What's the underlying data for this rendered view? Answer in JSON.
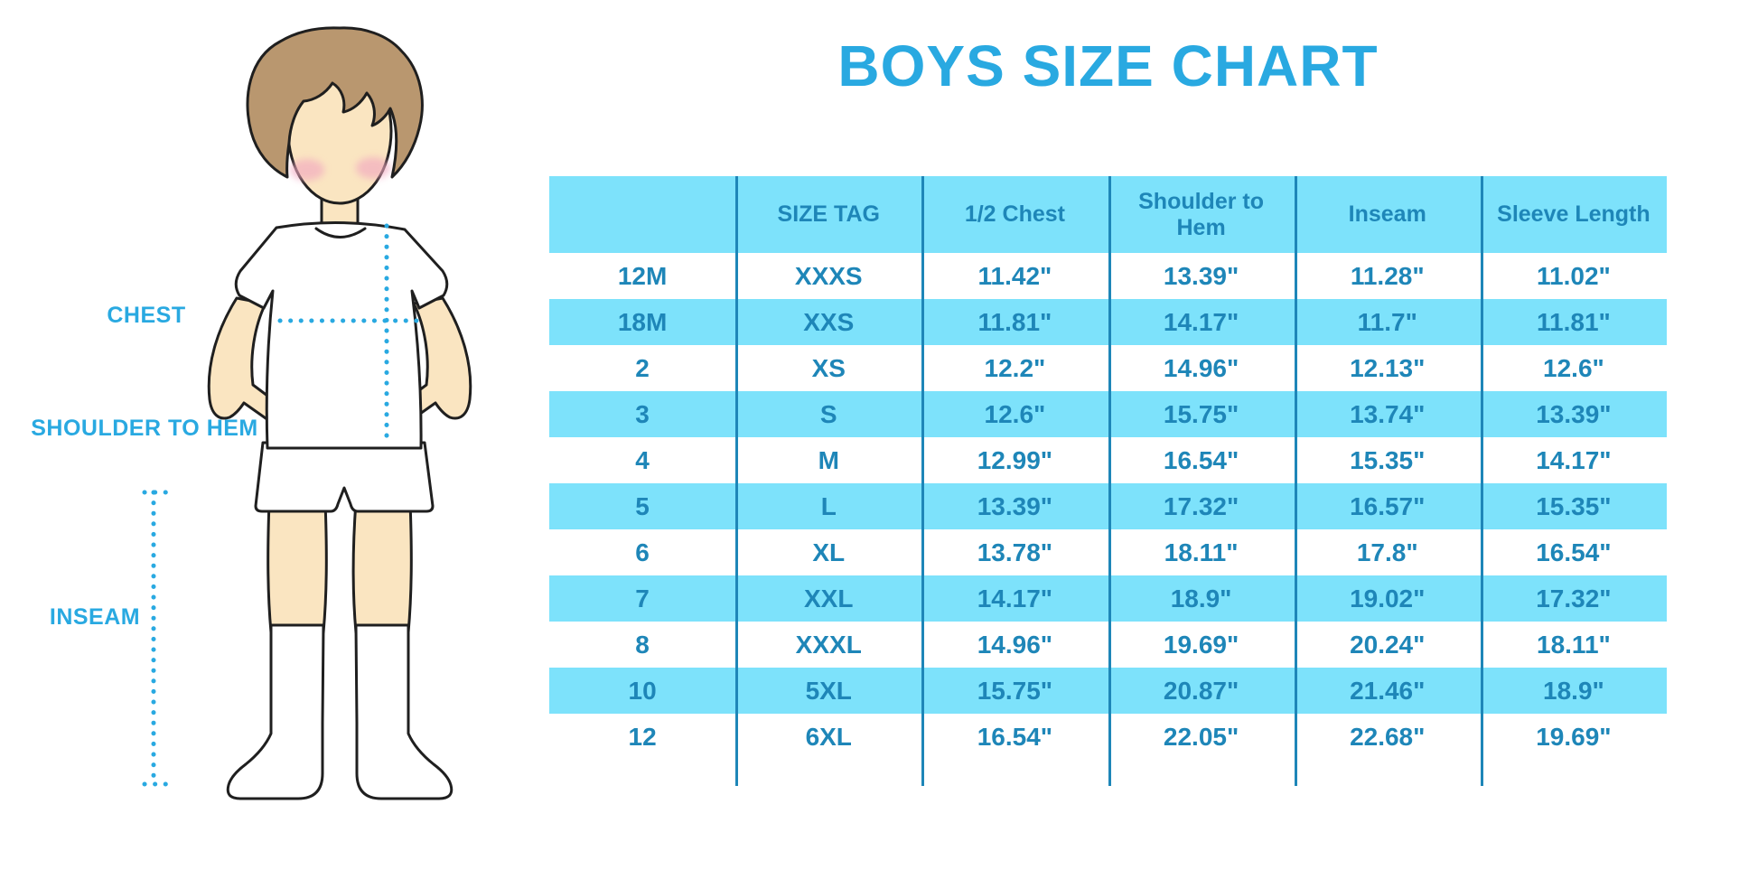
{
  "title": "BOYS SIZE CHART",
  "colors": {
    "accent_blue": "#29A9E1",
    "row_fill_blue": "#7DE2FB",
    "table_ink_blue": "#1E86B8",
    "outline": "#1f1f1f",
    "skin": "#FAE5C1",
    "hair": "#B9976F",
    "blush": "#F2A8C0",
    "clothing_white": "#FFFFFF"
  },
  "figure_labels": {
    "chest": "CHEST",
    "shoulder_to_hem": "SHOULDER TO HEM",
    "inseam": "INSEAM"
  },
  "chart_data": {
    "type": "table",
    "title": "BOYS SIZE CHART",
    "units": "inches",
    "columns": [
      "",
      "SIZE TAG",
      "1/2 Chest",
      "Shoulder to Hem",
      "Inseam",
      "Sleeve Length"
    ],
    "rows": [
      [
        "12M",
        "XXXS",
        "11.42\"",
        "13.39\"",
        "11.28\"",
        "11.02\""
      ],
      [
        "18M",
        "XXS",
        "11.81\"",
        "14.17\"",
        "11.7\"",
        "11.81\""
      ],
      [
        "2",
        "XS",
        "12.2\"",
        "14.96\"",
        "12.13\"",
        "12.6\""
      ],
      [
        "3",
        "S",
        "12.6\"",
        "15.75\"",
        "13.74\"",
        "13.39\""
      ],
      [
        "4",
        "M",
        "12.99\"",
        "16.54\"",
        "15.35\"",
        "14.17\""
      ],
      [
        "5",
        "L",
        "13.39\"",
        "17.32\"",
        "16.57\"",
        "15.35\""
      ],
      [
        "6",
        "XL",
        "13.78\"",
        "18.11\"",
        "17.8\"",
        "16.54\""
      ],
      [
        "7",
        "XXL",
        "14.17\"",
        "18.9\"",
        "19.02\"",
        "17.32\""
      ],
      [
        "8",
        "XXXL",
        "14.96\"",
        "19.69\"",
        "20.24\"",
        "18.11\""
      ],
      [
        "10",
        "5XL",
        "15.75\"",
        "20.87\"",
        "21.46\"",
        "18.9\""
      ],
      [
        "12",
        "6XL",
        "16.54\"",
        "22.05\"",
        "22.68\"",
        "19.69\""
      ]
    ],
    "row_striping": "alternating white / light blue, first data row white",
    "legend_position": "none",
    "grid": "vertical column separators only"
  }
}
